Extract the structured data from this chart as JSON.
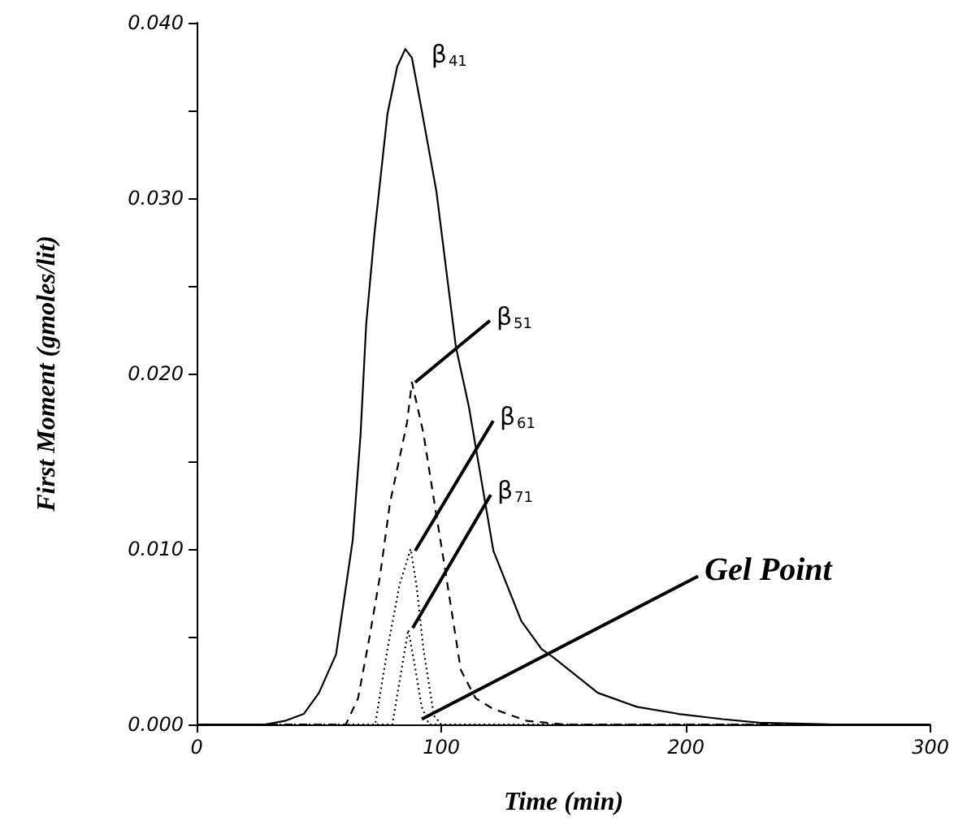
{
  "chart_data": {
    "type": "line",
    "xlabel": "Time (min)",
    "ylabel": "First Moment (gmoles/lit)",
    "xlim": [
      0,
      300
    ],
    "xticks": [
      0,
      100,
      200,
      300
    ],
    "ylim": [
      0,
      0.04
    ],
    "yticks": [
      {
        "value": 0,
        "label": "0.000"
      },
      {
        "value": 0.005,
        "label": null
      },
      {
        "value": 0.01,
        "label": "0.010"
      },
      {
        "value": 0.015,
        "label": null
      },
      {
        "value": 0.02,
        "label": "0.020"
      },
      {
        "value": 0.025,
        "label": null
      },
      {
        "value": 0.03,
        "label": "0.030"
      },
      {
        "value": 0.035,
        "label": null
      },
      {
        "value": 0.04,
        "label": "0.040"
      }
    ],
    "grid": false,
    "marker": "none",
    "series": [
      {
        "color": "#000000",
        "line_style": "solid",
        "x": [
          0,
          28,
          36,
          43.8,
          50,
          57,
          63.8,
          67,
          69.3,
          72.7,
          78,
          82,
          85.3,
          88,
          91.5,
          98,
          106,
          111.3,
          121.3,
          132.7,
          141,
          146,
          164,
          180,
          197,
          215,
          230,
          260,
          300
        ],
        "values": [
          0,
          0,
          0.0002,
          0.0006,
          0.0018,
          0.004,
          0.0105,
          0.0165,
          0.0228,
          0.028,
          0.0348,
          0.0375,
          0.0385,
          0.038,
          0.0354,
          0.0304,
          0.0215,
          0.0181,
          0.0099,
          0.0059,
          0.0043,
          0.0038,
          0.0018,
          0.001,
          0.0006,
          0.0003,
          0.0001,
          0,
          0
        ]
      },
      {
        "color": "#000000",
        "line_style": "dashed",
        "x": [
          0,
          61,
          66,
          70.7,
          75,
          79,
          86,
          88,
          92.7,
          97,
          101.5,
          108,
          114,
          121,
          135,
          150,
          300
        ],
        "values": [
          0,
          0,
          0.0015,
          0.005,
          0.0085,
          0.0126,
          0.0172,
          0.0195,
          0.0166,
          0.0128,
          0.0089,
          0.0031,
          0.0015,
          0.0009,
          0.0002,
          0,
          0
        ]
      },
      {
        "color": "#000000",
        "line_style": "dotted",
        "x": [
          0,
          73,
          78,
          83,
          87.5,
          90,
          92.7,
          97,
          100,
          300
        ],
        "values": [
          0,
          0,
          0.0043,
          0.008,
          0.01,
          0.0078,
          0.0043,
          0.0005,
          0,
          0
        ]
      },
      {
        "color": "#000000",
        "line_style": "dotted",
        "x": [
          0,
          80,
          83,
          86.5,
          89,
          92,
          95,
          300
        ],
        "values": [
          0,
          0,
          0.0025,
          0.0054,
          0.0035,
          0.001,
          0,
          0
        ]
      }
    ],
    "annotations": [
      {
        "text": "β$_{41}$",
        "x": 85.3,
        "y": 0.0385
      },
      {
        "text": "β$_{51}$",
        "x": 88,
        "y": 0.0195
      },
      {
        "text": "β$_{61}$",
        "x": 88,
        "y": 0.0099
      },
      {
        "text": "β$_{71}$",
        "x": 87,
        "y": 0.0055
      },
      {
        "text": "Gel Point",
        "x": 90.7,
        "y": 0.0003
      }
    ]
  }
}
